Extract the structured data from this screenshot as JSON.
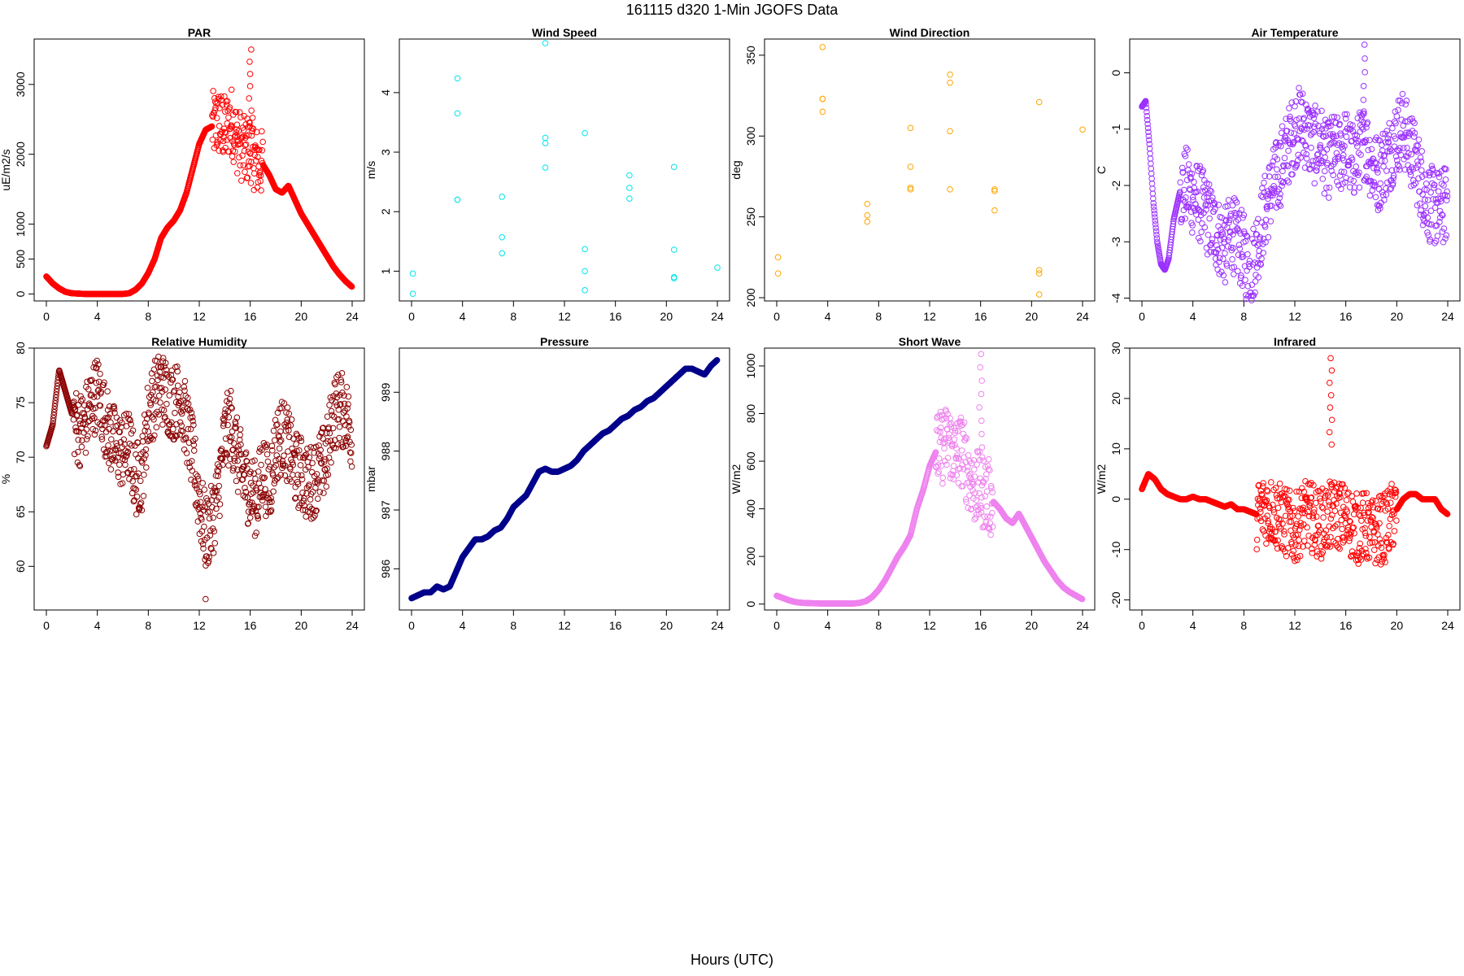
{
  "figure": {
    "title": "161115   d320   1-Min  JGOFS Data",
    "xlabel": "Hours (UTC)"
  },
  "chart_data": [
    {
      "type": "scatter",
      "title": "PAR",
      "ylabel": "uE/m2/s",
      "color": "#ff0000",
      "xlim": [
        0,
        24
      ],
      "ylim": [
        -100,
        3650
      ],
      "xticks": [
        0,
        4,
        8,
        12,
        16,
        20,
        24
      ],
      "yticks": [
        0,
        500,
        1000,
        2000,
        3000
      ],
      "series": [
        {
          "x": [
            0,
            0.5,
            1,
            1.5,
            2,
            3,
            4,
            5,
            6,
            6.5,
            7,
            7.5,
            8,
            8.5,
            9,
            9.5,
            10,
            10.5,
            11,
            11.5,
            12,
            12.5,
            13,
            13.5,
            14,
            14.5,
            15,
            15.5,
            16,
            16.5,
            17,
            17.5,
            18,
            18.5,
            19,
            19.5,
            20,
            20.5,
            21,
            21.5,
            22,
            22.5,
            23,
            23.5,
            24
          ],
          "y": [
            250,
            150,
            80,
            30,
            10,
            0,
            0,
            0,
            0,
            10,
            60,
            150,
            300,
            500,
            800,
            950,
            1050,
            1200,
            1450,
            1800,
            2150,
            2350,
            2400,
            2450,
            2350,
            2500,
            2200,
            2050,
            2100,
            1900,
            1850,
            1700,
            1500,
            1450,
            1550,
            1350,
            1150,
            1000,
            850,
            700,
            550,
            400,
            280,
            180,
            100
          ]
        }
      ],
      "scatter_band": {
        "from": 13,
        "to": 17,
        "spread": 500,
        "peak_x": 16,
        "peak_y": 3500
      }
    },
    {
      "type": "scatter",
      "title": "Wind Speed",
      "ylabel": "m/s",
      "color": "#00e5ee",
      "xlim": [
        0,
        24
      ],
      "ylim": [
        0.5,
        4.9
      ],
      "xticks": [
        0,
        4,
        8,
        12,
        16,
        20,
        24
      ],
      "yticks": [
        1,
        2,
        3,
        4
      ],
      "series": [
        {
          "x": [
            0.1,
            0.1,
            3.6,
            3.6,
            3.6,
            3.6,
            7.1,
            7.1,
            7.1,
            10.5,
            10.5,
            10.5,
            10.5,
            13.6,
            13.6,
            13.6,
            13.6,
            17.1,
            17.1,
            17.1,
            20.6,
            20.6,
            20.6,
            20.6,
            24
          ],
          "y": [
            0.96,
            0.62,
            4.24,
            3.65,
            2.2,
            2.2,
            2.25,
            1.57,
            1.3,
            4.83,
            3.24,
            3.15,
            2.74,
            3.32,
            1.37,
            1.0,
            0.68,
            2.61,
            2.4,
            2.22,
            2.75,
            1.36,
            0.9,
            0.88,
            1.06
          ]
        }
      ]
    },
    {
      "type": "scatter",
      "title": "Wind Direction",
      "ylabel": "deg",
      "color": "#ffa500",
      "xlim": [
        0,
        24
      ],
      "ylim": [
        198,
        360
      ],
      "xticks": [
        0,
        4,
        8,
        12,
        16,
        20,
        24
      ],
      "yticks": [
        200,
        250,
        300,
        350
      ],
      "series": [
        {
          "x": [
            0.1,
            0.1,
            3.6,
            3.6,
            3.6,
            3.6,
            7.1,
            7.1,
            7.1,
            10.5,
            10.5,
            10.5,
            10.5,
            13.6,
            13.6,
            13.6,
            13.6,
            17.1,
            17.1,
            17.1,
            20.6,
            20.6,
            20.6,
            20.6,
            24
          ],
          "y": [
            225,
            215,
            355,
            323,
            323,
            315,
            258,
            251,
            247,
            305,
            281,
            268,
            267,
            338,
            333,
            303,
            267,
            267,
            266,
            254,
            321,
            217,
            215,
            202,
            304
          ]
        }
      ]
    },
    {
      "type": "scatter",
      "title": "Air Temperature",
      "ylabel": "C",
      "color": "#9b30ff",
      "xlim": [
        0,
        24
      ],
      "ylim": [
        -4.05,
        0.6
      ],
      "xticks": [
        0,
        4,
        8,
        12,
        16,
        20,
        24
      ],
      "yticks": [
        -4,
        -3,
        -2,
        -1,
        0
      ],
      "series": [
        {
          "x": [
            0,
            0.3,
            0.6,
            0.9,
            1.2,
            1.5,
            1.8,
            2.1,
            2.5,
            3,
            3.5,
            4,
            4.5,
            5,
            5.5,
            6,
            6.5,
            7,
            7.5,
            8,
            8.5,
            9,
            9.5,
            10,
            10.5,
            11,
            11.5,
            12,
            12.5,
            13,
            13.5,
            14,
            14.5,
            15,
            15.5,
            16,
            16.5,
            17,
            17.5,
            18,
            18.5,
            19,
            19.5,
            20,
            20.5,
            21,
            21.5,
            22,
            22.5,
            23,
            23.5,
            24
          ],
          "y": [
            -0.6,
            -0.5,
            -1.3,
            -2.3,
            -3.0,
            -3.4,
            -3.5,
            -3.3,
            -2.6,
            -2.1,
            -2.0,
            -2.2,
            -2.3,
            -2.5,
            -2.7,
            -2.9,
            -3.1,
            -2.8,
            -3.0,
            -3.2,
            -3.6,
            -3.1,
            -2.6,
            -2.2,
            -1.9,
            -1.6,
            -1.3,
            -1.0,
            -0.9,
            -1.1,
            -1.3,
            -1.2,
            -1.6,
            -1.4,
            -1.5,
            -1.3,
            -1.6,
            -1.4,
            -1.2,
            -1.6,
            -1.8,
            -1.6,
            -1.4,
            -1.1,
            -1.0,
            -1.3,
            -1.6,
            -2.0,
            -2.3,
            -2.4,
            -2.4,
            -2.3
          ]
        }
      ],
      "scatter_band": {
        "from": 3,
        "to": 24,
        "spread": 0.7,
        "peak_x": 17.5,
        "peak_y": 0.5
      }
    },
    {
      "type": "scatter",
      "title": "Relative Humidity",
      "ylabel": "%",
      "color": "#8b0000",
      "xlim": [
        0,
        24
      ],
      "ylim": [
        56,
        80
      ],
      "xticks": [
        0,
        4,
        8,
        12,
        16,
        20,
        24
      ],
      "yticks": [
        60,
        65,
        70,
        75,
        80
      ],
      "series": [
        {
          "x": [
            0,
            0.5,
            1,
            1.5,
            2,
            2.5,
            3,
            3.5,
            4,
            4.5,
            5,
            5.5,
            6,
            6.5,
            7,
            7.5,
            8,
            8.5,
            9,
            9.5,
            10,
            10.5,
            11,
            11.5,
            12,
            12.5,
            13,
            13.5,
            14,
            14.5,
            15,
            15.5,
            16,
            16.5,
            17,
            17.5,
            18,
            18.5,
            19,
            19.5,
            20,
            20.5,
            21,
            21.5,
            22,
            22.5,
            23,
            23.5,
            24
          ],
          "y": [
            71,
            73,
            78,
            76,
            74,
            72.5,
            73,
            75,
            76,
            74,
            72,
            71,
            70.5,
            71,
            68,
            68.5,
            74,
            75.5,
            76.5,
            75.5,
            75,
            75.5,
            73,
            70,
            66,
            63,
            64,
            67,
            72,
            73,
            70,
            68,
            67,
            66,
            69,
            67,
            71,
            72,
            71,
            69,
            68.5,
            67.5,
            68,
            69,
            70,
            74,
            74.5,
            74,
            72
          ]
        }
      ],
      "scatter_band": {
        "from": 2,
        "to": 24,
        "spread": 3.5,
        "peak_x": 12.5,
        "peak_y": 57
      }
    },
    {
      "type": "scatter",
      "title": "Pressure",
      "ylabel": "mbar",
      "color": "#00008b",
      "xlim": [
        0,
        24
      ],
      "ylim": [
        985.3,
        989.75
      ],
      "xticks": [
        0,
        4,
        8,
        12,
        16,
        20,
        24
      ],
      "yticks": [
        986,
        987,
        988,
        989
      ],
      "series": [
        {
          "x": [
            0,
            0.5,
            1,
            1.5,
            2,
            2.5,
            3,
            3.5,
            4,
            4.5,
            5,
            5.5,
            6,
            6.5,
            7,
            7.5,
            8,
            8.5,
            9,
            9.5,
            10,
            10.5,
            11,
            11.5,
            12,
            12.5,
            13,
            13.5,
            14,
            14.5,
            15,
            15.5,
            16,
            16.5,
            17,
            17.5,
            18,
            18.5,
            19,
            19.5,
            20,
            20.5,
            21,
            21.5,
            22,
            22.5,
            23,
            23.5,
            24
          ],
          "y": [
            985.5,
            985.55,
            985.6,
            985.6,
            985.7,
            985.65,
            985.7,
            985.95,
            986.2,
            986.35,
            986.5,
            986.5,
            986.55,
            986.65,
            986.7,
            986.85,
            987.05,
            987.15,
            987.25,
            987.45,
            987.65,
            987.7,
            987.65,
            987.65,
            987.7,
            987.75,
            987.85,
            988.0,
            988.1,
            988.2,
            988.3,
            988.35,
            988.45,
            988.55,
            988.6,
            988.7,
            988.75,
            988.85,
            988.9,
            989.0,
            989.1,
            989.2,
            989.3,
            989.4,
            989.4,
            989.35,
            989.3,
            989.45,
            989.55
          ]
        }
      ]
    },
    {
      "type": "scatter",
      "title": "Short Wave",
      "ylabel": "W/m2",
      "color": "#ee82ee",
      "xlim": [
        0,
        24
      ],
      "ylim": [
        -25,
        1075
      ],
      "xticks": [
        0,
        4,
        8,
        12,
        16,
        20,
        24
      ],
      "yticks": [
        0,
        200,
        400,
        600,
        800,
        1000
      ],
      "series": [
        {
          "x": [
            0,
            0.5,
            1,
            1.5,
            2,
            3,
            4,
            5,
            6,
            6.5,
            7,
            7.5,
            8,
            8.5,
            9,
            9.5,
            10,
            10.5,
            11,
            11.5,
            12,
            12.5,
            13,
            13.5,
            14,
            14.5,
            15,
            15.5,
            16,
            16.5,
            17,
            17.5,
            18,
            18.5,
            19,
            19.5,
            20,
            20.5,
            21,
            21.5,
            22,
            22.5,
            23,
            23.5,
            24
          ],
          "y": [
            35,
            25,
            15,
            8,
            5,
            3,
            2,
            2,
            2,
            5,
            12,
            30,
            60,
            100,
            150,
            200,
            240,
            290,
            400,
            480,
            580,
            640,
            660,
            690,
            620,
            650,
            560,
            490,
            480,
            460,
            430,
            400,
            360,
            340,
            380,
            330,
            280,
            230,
            180,
            140,
            100,
            70,
            50,
            35,
            20
          ]
        }
      ],
      "scatter_band": {
        "from": 12.5,
        "to": 17,
        "spread": 160,
        "peak_x": 16,
        "peak_y": 1050
      }
    },
    {
      "type": "scatter",
      "title": "Infrared",
      "ylabel": "W/m2",
      "color": "#ff0000",
      "xlim": [
        0,
        24
      ],
      "ylim": [
        -22,
        30
      ],
      "xticks": [
        0,
        4,
        8,
        12,
        16,
        20,
        24
      ],
      "yticks": [
        -20,
        -10,
        0,
        10,
        20,
        30
      ],
      "series": [
        {
          "x": [
            0,
            0.5,
            1,
            1.5,
            2,
            2.5,
            3,
            3.5,
            4,
            4.5,
            5,
            5.5,
            6,
            6.5,
            7,
            7.5,
            8,
            8.5,
            9,
            9.5,
            10,
            10.5,
            11,
            11.5,
            12,
            12.5,
            13,
            13.5,
            14,
            14.5,
            15,
            15.5,
            16,
            16.5,
            17,
            17.5,
            18,
            18.5,
            19,
            19.5,
            20,
            20.5,
            21,
            21.5,
            22,
            22.5,
            23,
            23.5,
            24
          ],
          "y": [
            2,
            5,
            4,
            2,
            1,
            0.5,
            0,
            0,
            0.5,
            0,
            0,
            -0.5,
            -1,
            -1.5,
            -1,
            -2,
            -2,
            -2.5,
            -3,
            -2,
            -2,
            -3,
            -4,
            -5,
            -6,
            -4,
            -3,
            -4,
            -5,
            -4,
            -3,
            -3,
            -4,
            -5,
            -6,
            -5,
            -7,
            -6,
            -6,
            -4,
            -2,
            0,
            1,
            1,
            0,
            0,
            0,
            -2,
            -3
          ]
        }
      ],
      "scatter_band": {
        "from": 9,
        "to": 20,
        "spread": 7,
        "peak_x": 14.8,
        "peak_y": 28
      }
    }
  ]
}
